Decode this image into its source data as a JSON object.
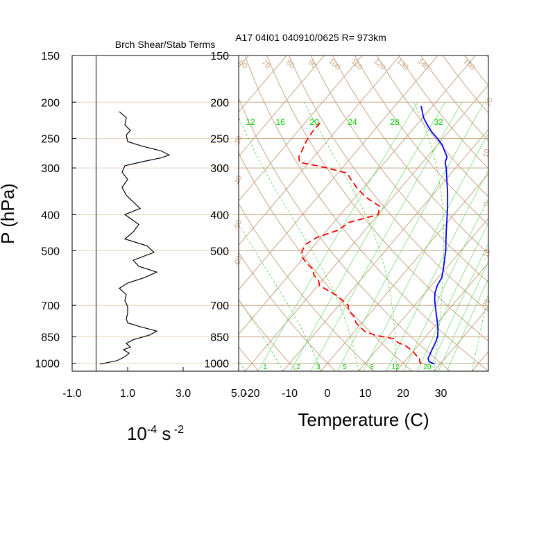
{
  "chart_data": [
    {
      "type": "line",
      "title": "Brch Shear/Stab Terms",
      "xlabel_main": "10",
      "xlabel_sup1": "-4",
      "xlabel_mid": " s",
      "xlabel_sup2": " -2",
      "ylabel": "P (hPa)",
      "xticks": [
        "-1.0",
        "1.0",
        "3.0",
        "5.0"
      ],
      "xlim": [
        -1.0,
        5.0
      ],
      "pressure_ticks": [
        150,
        200,
        250,
        300,
        400,
        500,
        700,
        850,
        1000
      ],
      "pressure_range": [
        1000,
        150
      ],
      "series": [
        {
          "color": "#000000",
          "points": [
            [
              1005,
              0.0
            ],
            [
              985,
              0.6
            ],
            [
              960,
              0.9
            ],
            [
              940,
              1.05
            ],
            [
              920,
              0.85
            ],
            [
              905,
              1.1
            ],
            [
              885,
              0.95
            ],
            [
              865,
              1.2
            ],
            [
              840,
              1.8
            ],
            [
              820,
              2.05
            ],
            [
              800,
              1.5
            ],
            [
              780,
              1.0
            ],
            [
              760,
              0.95
            ],
            [
              735,
              1.0
            ],
            [
              705,
              1.0
            ],
            [
              680,
              0.9
            ],
            [
              655,
              0.95
            ],
            [
              630,
              0.7
            ],
            [
              610,
              1.0
            ],
            [
              590,
              1.6
            ],
            [
              570,
              2.05
            ],
            [
              550,
              1.4
            ],
            [
              530,
              1.2
            ],
            [
              505,
              1.95
            ],
            [
              485,
              1.7
            ],
            [
              465,
              0.9
            ],
            [
              445,
              1.2
            ],
            [
              425,
              1.4
            ],
            [
              400,
              0.9
            ],
            [
              385,
              1.45
            ],
            [
              370,
              1.2
            ],
            [
              355,
              0.95
            ],
            [
              338,
              0.8
            ],
            [
              322,
              1.0
            ],
            [
              308,
              0.8
            ],
            [
              296,
              0.9
            ],
            [
              288,
              1.6
            ],
            [
              282,
              2.2
            ],
            [
              277,
              2.5
            ],
            [
              270,
              2.2
            ],
            [
              262,
              1.5
            ],
            [
              255,
              1.0
            ],
            [
              245,
              0.95
            ],
            [
              238,
              1.1
            ],
            [
              230,
              0.9
            ],
            [
              220,
              0.95
            ],
            [
              212,
              0.7
            ]
          ]
        }
      ]
    },
    {
      "type": "line",
      "title": "A17 04I01 040910/0625 R= 973km",
      "xlabel": "Temperature (C)",
      "xticks": [
        "-20",
        "-10",
        "0",
        "10",
        "20",
        "30"
      ],
      "xtick_values": [
        -20,
        -10,
        0,
        10,
        20,
        30
      ],
      "pressure_ticks": [
        150,
        200,
        250,
        300,
        400,
        500,
        700,
        850,
        1000
      ],
      "pressure_range": [
        1000,
        150
      ],
      "skew": "skew-T log-P",
      "isotherms_every": 10,
      "dry_adiabat_labels": [
        "60",
        "70",
        "80",
        "90",
        "100",
        "110",
        "120",
        "130",
        "140",
        "150"
      ],
      "moist_adiabat_labels": [
        "20",
        "10",
        "0",
        "-10",
        "-20",
        "-30",
        "-40",
        "-50",
        "-60"
      ],
      "mixing_ratio_top_labels": [
        "12",
        "16",
        "20",
        "24",
        "28",
        "32"
      ],
      "mixing_ratio_bottom_labels": [
        "1",
        "2",
        "3",
        "5",
        "8",
        "12",
        "20"
      ],
      "series": [
        {
          "name": "",
          "role": "temperature",
          "style": "solid",
          "color": "#0000ff",
          "points": [
            [
              1005,
              28.5
            ],
            [
              990,
              26.5
            ],
            [
              970,
              25.5
            ],
            [
              945,
              25.1
            ],
            [
              920,
              24.6
            ],
            [
              895,
              24.2
            ],
            [
              870,
              23.7
            ],
            [
              845,
              23.0
            ],
            [
              820,
              22.0
            ],
            [
              795,
              20.8
            ],
            [
              770,
              19.5
            ],
            [
              740,
              17.8
            ],
            [
              710,
              16.1
            ],
            [
              680,
              14.3
            ],
            [
              650,
              12.7
            ],
            [
              620,
              11.6
            ],
            [
              590,
              11.0
            ],
            [
              560,
              9.5
            ],
            [
              530,
              7.8
            ],
            [
              500,
              6.0
            ],
            [
              470,
              3.8
            ],
            [
              440,
              1.5
            ],
            [
              410,
              -0.9
            ],
            [
              380,
              -3.5
            ],
            [
              350,
              -6.5
            ],
            [
              320,
              -10.0
            ],
            [
              300,
              -12.5
            ],
            [
              290,
              -14.0
            ],
            [
              280,
              -14.8
            ],
            [
              270,
              -16.8
            ],
            [
              260,
              -18.8
            ],
            [
              250,
              -21.5
            ],
            [
              240,
              -24.5
            ],
            [
              230,
              -27.2
            ],
            [
              220,
              -29.8
            ],
            [
              205,
              -33.0
            ]
          ]
        },
        {
          "name": "",
          "role": "dewpoint",
          "style": "dashed",
          "color": "#ff0000",
          "points": [
            [
              1005,
              25.0
            ],
            [
              990,
              24.0
            ],
            [
              970,
              23.3
            ],
            [
              950,
              21.5
            ],
            [
              930,
              20.0
            ],
            [
              900,
              17.0
            ],
            [
              880,
              14.0
            ],
            [
              860,
              12.0
            ],
            [
              840,
              6.0
            ],
            [
              820,
              2.5
            ],
            [
              800,
              0.5
            ],
            [
              780,
              -1.5
            ],
            [
              750,
              -3.5
            ],
            [
              720,
              -6.5
            ],
            [
              700,
              -7.5
            ],
            [
              680,
              -10.0
            ],
            [
              660,
              -12.5
            ],
            [
              640,
              -16.0
            ],
            [
              620,
              -19.5
            ],
            [
              600,
              -21.0
            ],
            [
              580,
              -23.5
            ],
            [
              560,
              -25.0
            ],
            [
              540,
              -28.0
            ],
            [
              520,
              -30.5
            ],
            [
              500,
              -32.0
            ],
            [
              480,
              -32.5
            ],
            [
              460,
              -31.0
            ],
            [
              440,
              -27.0
            ],
            [
              420,
              -26.0
            ],
            [
              400,
              -20.0
            ],
            [
              380,
              -21.5
            ],
            [
              360,
              -27.0
            ],
            [
              340,
              -31.5
            ],
            [
              320,
              -35.5
            ],
            [
              310,
              -37.5
            ],
            [
              300,
              -44.0
            ],
            [
              295,
              -48.0
            ],
            [
              290,
              -52.5
            ],
            [
              280,
              -54.0
            ],
            [
              270,
              -54.5
            ],
            [
              255,
              -55.5
            ],
            [
              240,
              -56.0
            ],
            [
              225,
              -56.0
            ]
          ]
        }
      ]
    }
  ]
}
